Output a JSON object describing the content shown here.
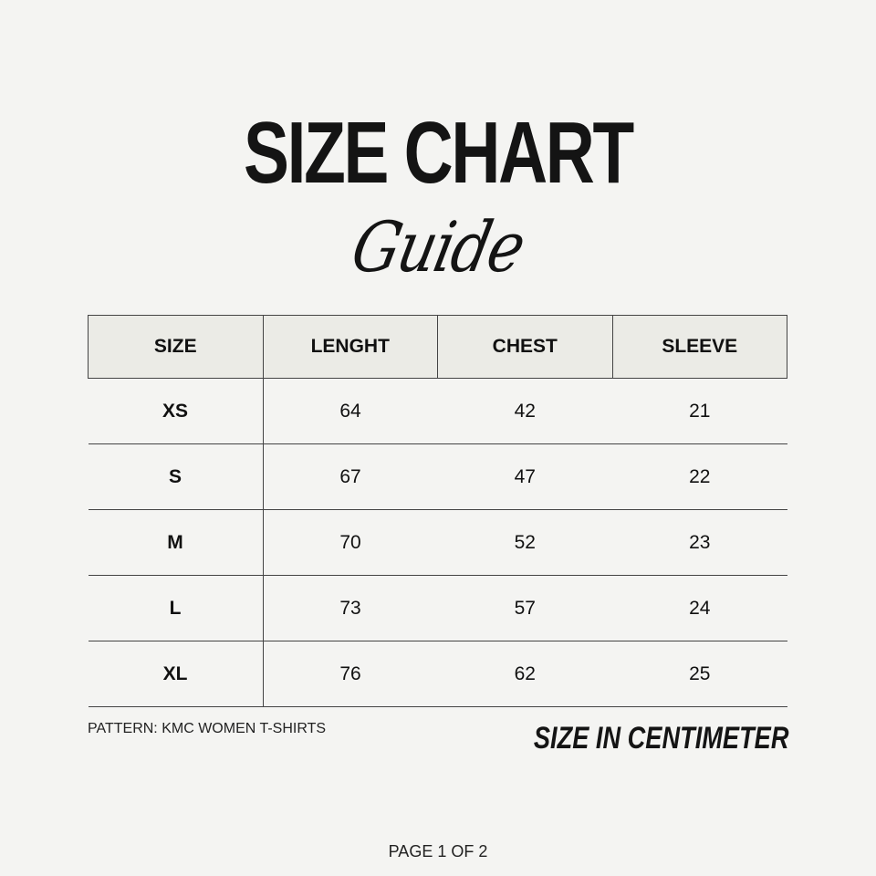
{
  "header": {
    "title": "SIZE CHART",
    "subtitle": "Guide"
  },
  "table": {
    "columns": [
      "SIZE",
      "LENGHT",
      "CHEST",
      "SLEEVE"
    ],
    "rows": [
      [
        "XS",
        "64",
        "42",
        "21"
      ],
      [
        "S",
        "67",
        "47",
        "22"
      ],
      [
        "M",
        "70",
        "52",
        "23"
      ],
      [
        "L",
        "73",
        "57",
        "24"
      ],
      [
        "XL",
        "76",
        "62",
        "25"
      ]
    ]
  },
  "footer": {
    "pattern": "PATTERN: KMC WOMEN T-SHIRTS",
    "unit_note": "SIZE IN CENTIMETER",
    "page": "PAGE 1 OF 2"
  }
}
